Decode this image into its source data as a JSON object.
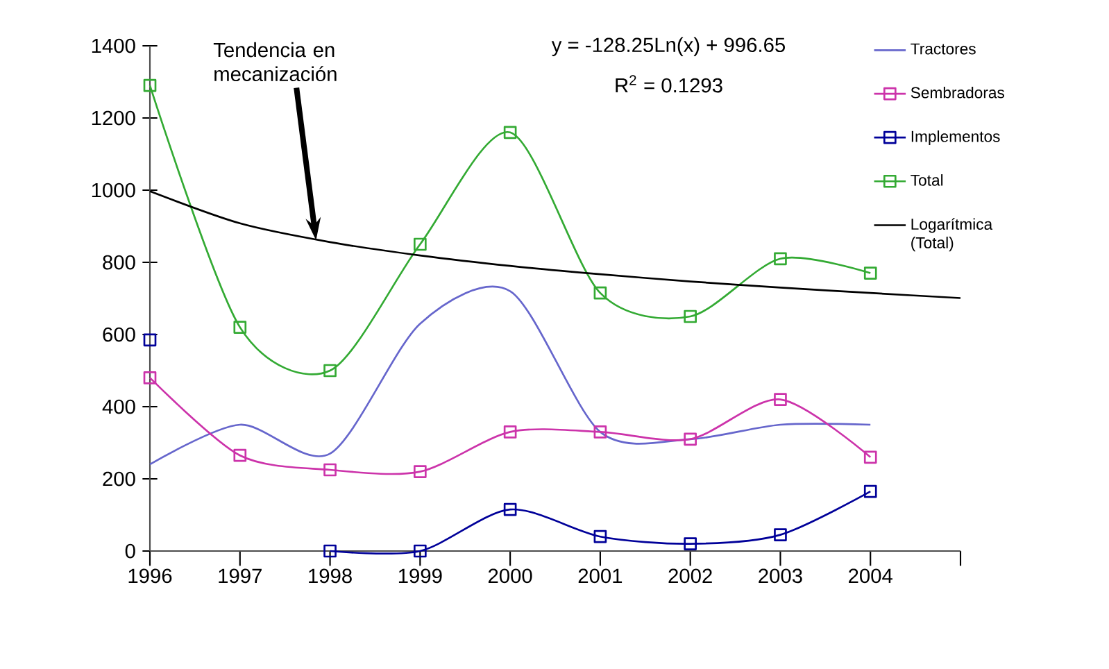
{
  "chart_data": {
    "type": "line",
    "categories": [
      "1996",
      "1997",
      "1998",
      "1999",
      "2000",
      "2001",
      "2002",
      "2003",
      "2004",
      null
    ],
    "series": [
      {
        "name": "Tractores",
        "color": "#6666cc",
        "marker": "none",
        "values": [
          240,
          350,
          270,
          630,
          720,
          330,
          310,
          350,
          350,
          null
        ]
      },
      {
        "name": "Sembradoras",
        "color": "#cc33aa",
        "marker": "square",
        "values": [
          480,
          265,
          225,
          220,
          330,
          330,
          310,
          420,
          260,
          null
        ]
      },
      {
        "name": "Implementos",
        "color": "#000099",
        "marker": "square",
        "values": [
          585,
          null,
          0,
          0,
          115,
          40,
          20,
          45,
          165,
          null
        ]
      },
      {
        "name": "Total",
        "color": "#33aa33",
        "marker": "square",
        "values": [
          1290,
          620,
          500,
          850,
          1160,
          715,
          650,
          810,
          770,
          null
        ]
      },
      {
        "name": "Logarítmica (Total)",
        "color": "#000000",
        "marker": "none",
        "values": [
          997,
          908,
          856,
          819,
          790,
          767,
          747,
          730,
          715,
          701
        ]
      }
    ],
    "ylim": [
      0,
      1400
    ],
    "yticks": [
      0,
      200,
      400,
      600,
      800,
      1000,
      1200,
      1400
    ],
    "legend": "right",
    "grid": false,
    "annotations": [
      "Tendencia en mecanización",
      "y = -128.25Ln(x) + 996.65",
      "R$^{2}$ = 0.1293"
    ]
  }
}
